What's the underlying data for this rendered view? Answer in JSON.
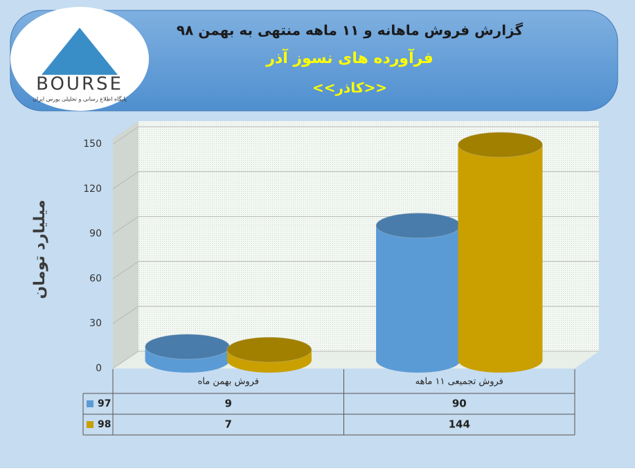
{
  "logo": {
    "text": "BOURSE",
    "caption": "پایگاه اطلاع رسانی و تحلیلی بورس ایران"
  },
  "chart_data": {
    "type": "bar3d",
    "title": "گزارش فروش ماهانه و ۱۱ ماهه منتهی به بهمن ۹۸",
    "subtitle": "فرآورده های نسوز آذر",
    "company": "<<کاذر>>",
    "y_label": "میلیارد تومان",
    "categories": [
      "فروش بهمن  ماه",
      "فروش تجمیعی ۱۱ ماهه"
    ],
    "series": [
      {
        "name": "97",
        "color": "#5b9bd5",
        "values": [
          9,
          90
        ]
      },
      {
        "name": "98",
        "color": "#c9a000",
        "values": [
          7,
          144
        ]
      }
    ],
    "ylim": [
      0,
      150
    ],
    "yticks": [
      0,
      30,
      60,
      90,
      120,
      150
    ],
    "grid": true
  }
}
